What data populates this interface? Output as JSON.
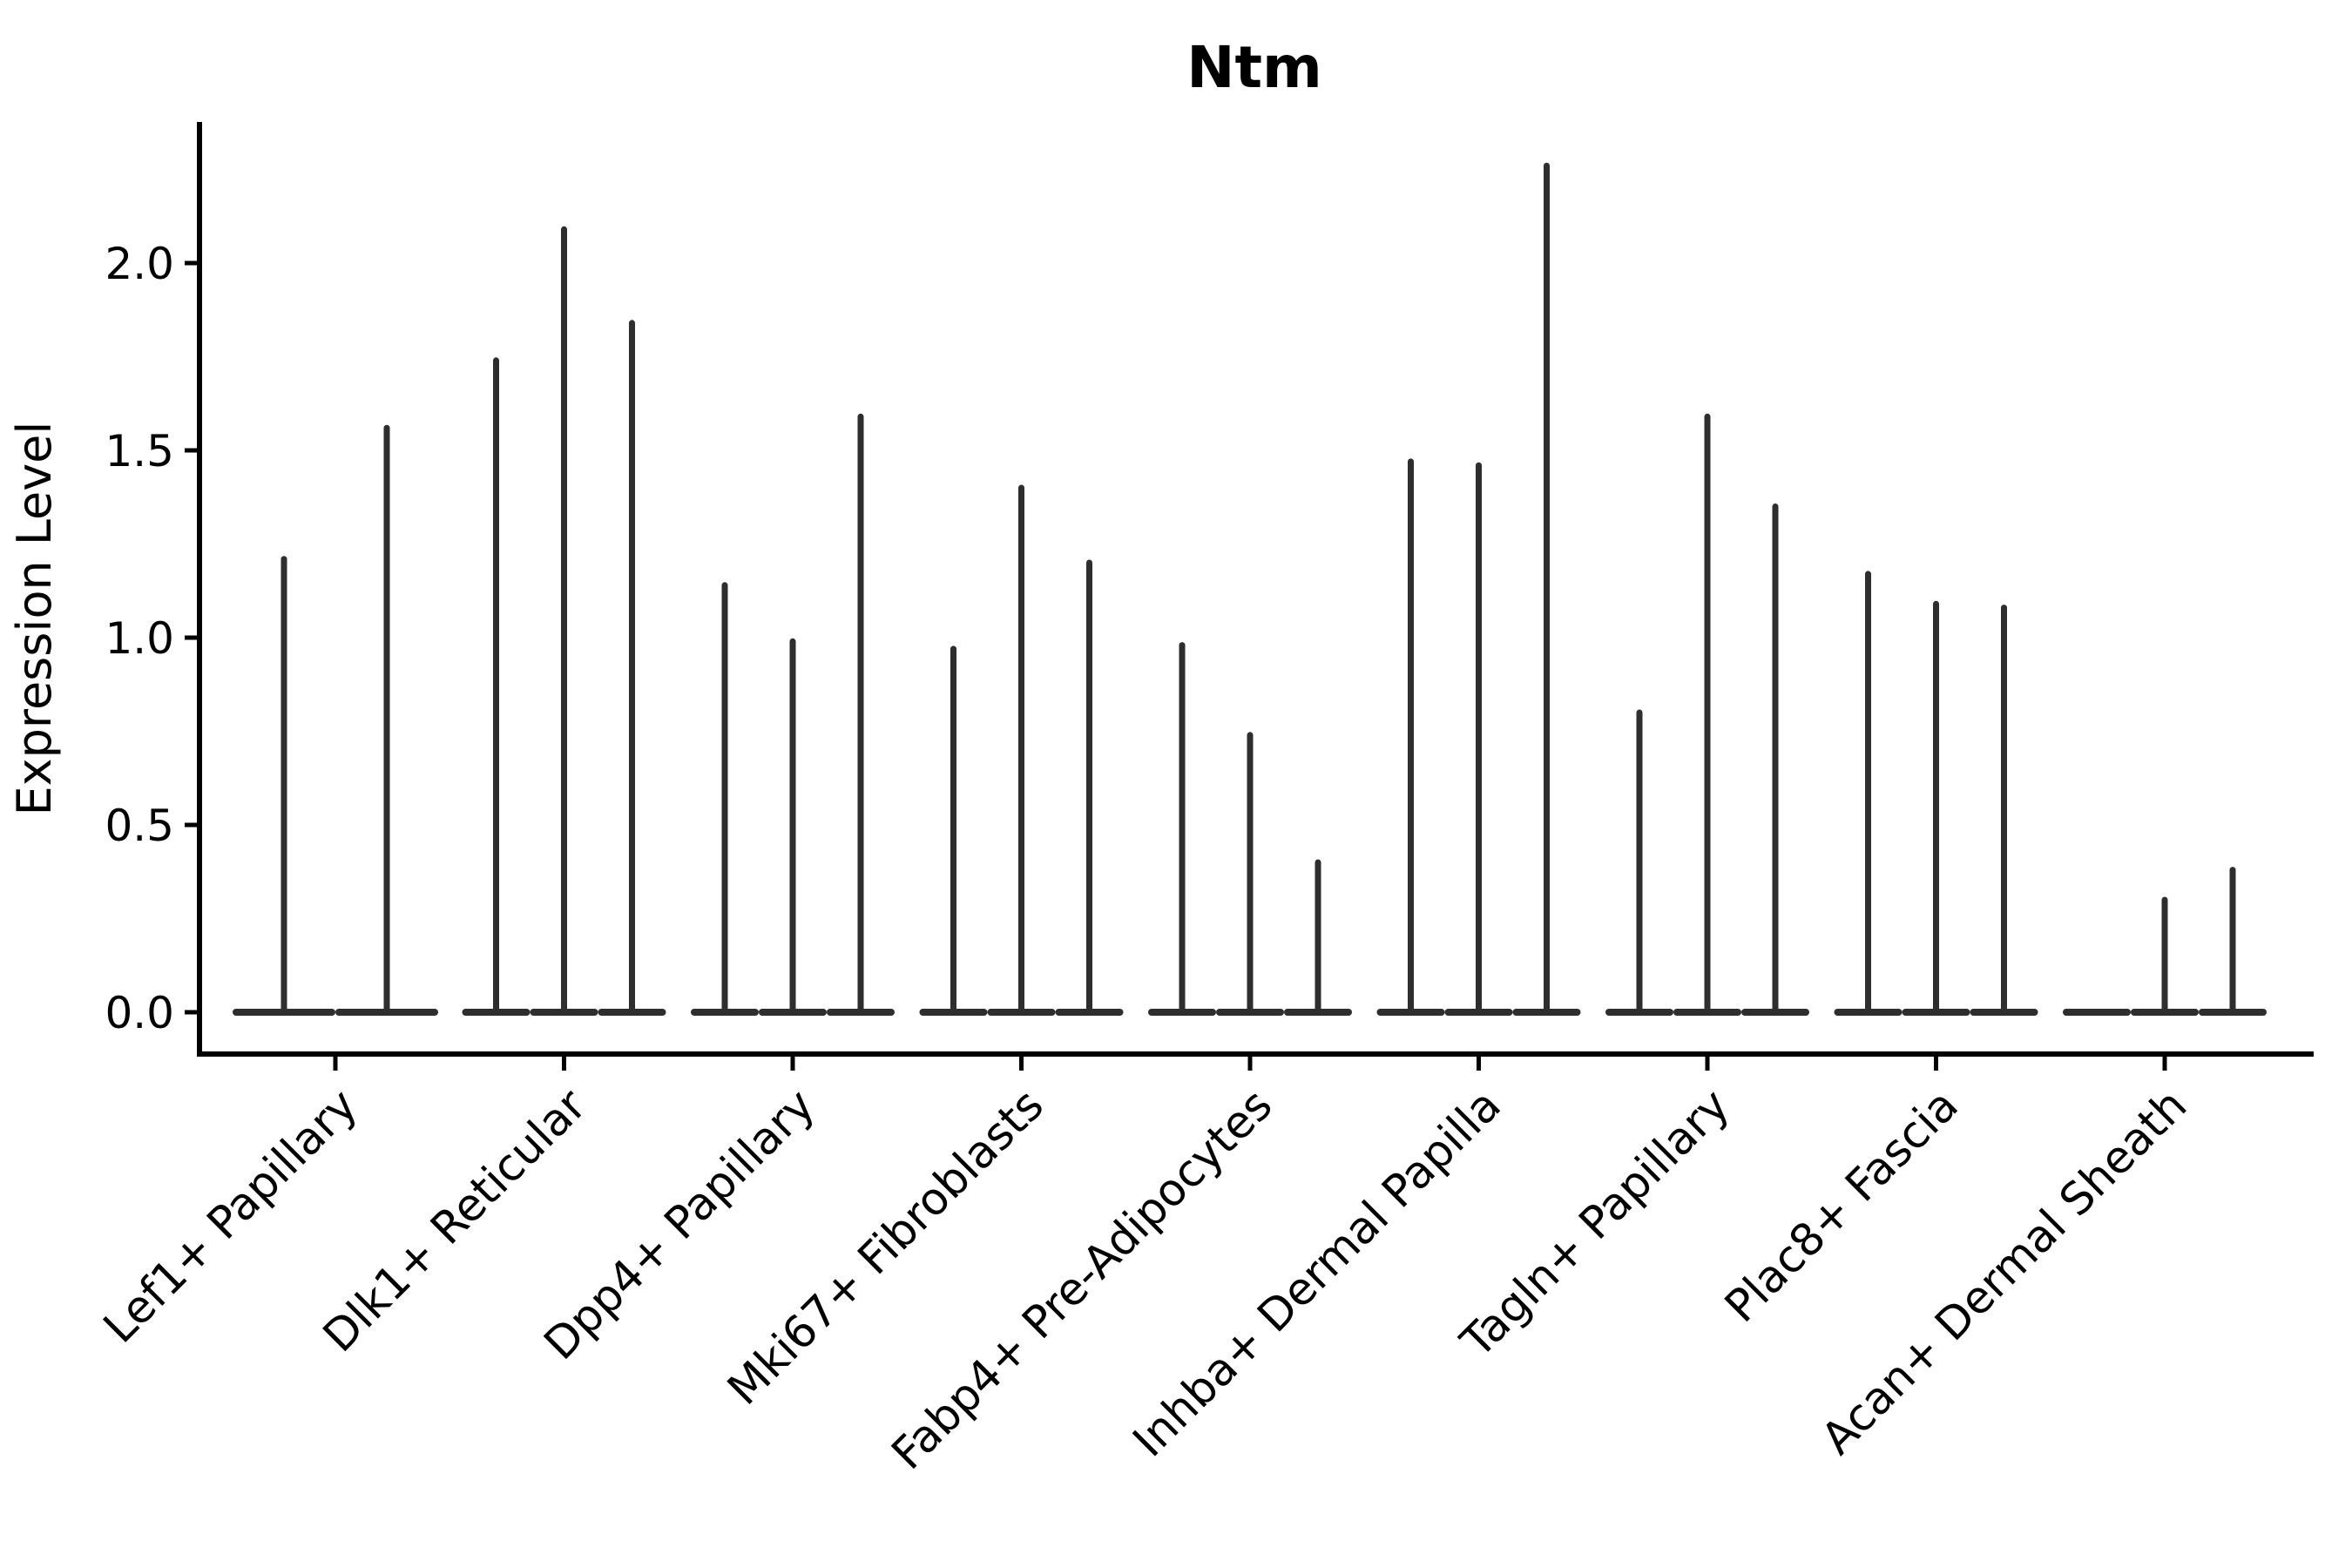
{
  "title": "Ntm",
  "y_axis": {
    "label": "Expression Level",
    "tick_labels": [
      "0.0",
      "0.5",
      "1.0",
      "1.5",
      "2.0"
    ],
    "tick_values": [
      0.0,
      0.5,
      1.0,
      1.5,
      2.0
    ]
  },
  "x_axis": {
    "tick_labels": [
      "Lef1+ Papillary",
      "Dlk1+ Reticular",
      "Dpp4+ Papillary",
      "Mki67+ Fibroblasts",
      "Fabp4+ Pre-Adipocytes",
      "Inhba+ Dermal Papilla",
      "Tagln+ Papillary",
      "Plac8+ Fascia",
      "Acan+ Dermal Sheath"
    ],
    "label_rotation_deg": 45
  },
  "colors": {
    "violin_ink": "#2e2e2e",
    "axis_ink": "#000000",
    "background": "#ffffff"
  },
  "chart_data": {
    "type": "violin",
    "title": "Ntm",
    "xlabel": "",
    "ylabel": "Expression Level",
    "ylim": [
      -0.11,
      2.38
    ],
    "yticks": [
      0.0,
      0.5,
      1.0,
      1.5,
      2.0
    ],
    "grid": false,
    "legend": "none",
    "description": "Single-gene (Ntm) expression violin plot across fibroblast cell-type groups; each group contains narrow sub-violins (bulk of cells at 0 giving a flat base, thin spike up to the max expression).",
    "categories": [
      "Lef1+ Papillary",
      "Dlk1+ Reticular",
      "Dpp4+ Papillary",
      "Mki67+ Fibroblasts",
      "Fabp4+ Pre-Adipocytes",
      "Inhba+ Dermal Papilla",
      "Tagln+ Papillary",
      "Plac8+ Fascia",
      "Acan+ Dermal Sheath"
    ],
    "series": [
      {
        "name": "Lef1+ Papillary",
        "violin_max": [
          1.21,
          1.56
        ]
      },
      {
        "name": "Dlk1+ Reticular",
        "violin_max": [
          1.74,
          2.09,
          1.84
        ]
      },
      {
        "name": "Dpp4+ Papillary",
        "violin_max": [
          1.14,
          0.99,
          1.59
        ]
      },
      {
        "name": "Mki67+ Fibroblasts",
        "violin_max": [
          0.97,
          1.4,
          1.2
        ]
      },
      {
        "name": "Fabp4+ Pre-Adipocytes",
        "violin_max": [
          0.98,
          0.74,
          0.4
        ]
      },
      {
        "name": "Inhba+ Dermal Papilla",
        "violin_max": [
          1.47,
          1.46,
          2.26
        ]
      },
      {
        "name": "Tagln+ Papillary",
        "violin_max": [
          0.8,
          1.59,
          1.35
        ]
      },
      {
        "name": "Plac8+ Fascia",
        "violin_max": [
          1.17,
          1.09,
          1.08
        ]
      },
      {
        "name": "Acan+ Dermal Sheath",
        "violin_max": [
          0.0,
          0.3,
          0.38
        ]
      }
    ],
    "violin_min": 0.0
  }
}
